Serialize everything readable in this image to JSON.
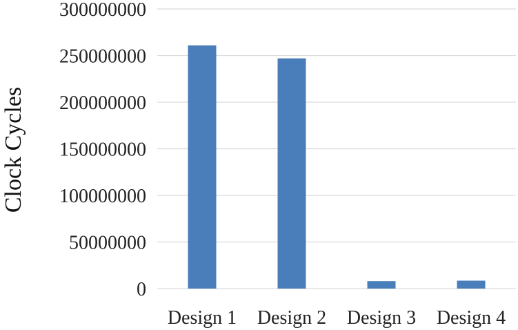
{
  "chart_data": {
    "type": "bar",
    "title": "",
    "xlabel": "",
    "ylabel": "Clock Cycles",
    "categories": [
      "Design 1",
      "Design 2",
      "Design 3",
      "Design 4"
    ],
    "values": [
      261000000,
      247000000,
      8000000,
      8500000
    ],
    "ylim": [
      0,
      300000000
    ],
    "yticks": [
      "0",
      "50000000",
      "100000000",
      "150000000",
      "200000000",
      "250000000",
      "300000000"
    ],
    "grid": true,
    "legend": "none",
    "colors": {
      "bar": "#4a7ebb",
      "grid": "#d9d9d9",
      "baseline": "#d9d9d9"
    }
  }
}
